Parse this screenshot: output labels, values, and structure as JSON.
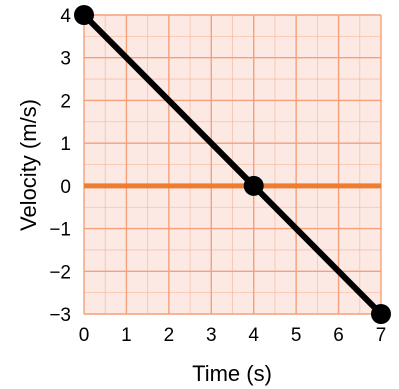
{
  "chart_data": {
    "type": "line",
    "title": "",
    "xlabel": "Time (s)",
    "ylabel": "Velocity (m/s)",
    "xlim": [
      0,
      7
    ],
    "ylim": [
      -3,
      4
    ],
    "x_ticks": [
      "0",
      "1",
      "2",
      "3",
      "4",
      "5",
      "6",
      "7"
    ],
    "y_ticks": [
      "4",
      "3",
      "2",
      "1",
      "0",
      "−1",
      "−2",
      "−3"
    ],
    "grid": true,
    "minor_grid_step": 0.5,
    "series": [
      {
        "x": [
          0,
          4,
          7
        ],
        "y": [
          4,
          0,
          -3
        ],
        "markers": true,
        "color": "#000000"
      }
    ],
    "reference_lines": [
      {
        "axis": "y",
        "value": 0,
        "color": "#EE7D31"
      }
    ],
    "colors": {
      "background": "#FCE9E4",
      "grid": "#F4A07A",
      "zero_line": "#EE7D31",
      "series": "#000000"
    }
  }
}
